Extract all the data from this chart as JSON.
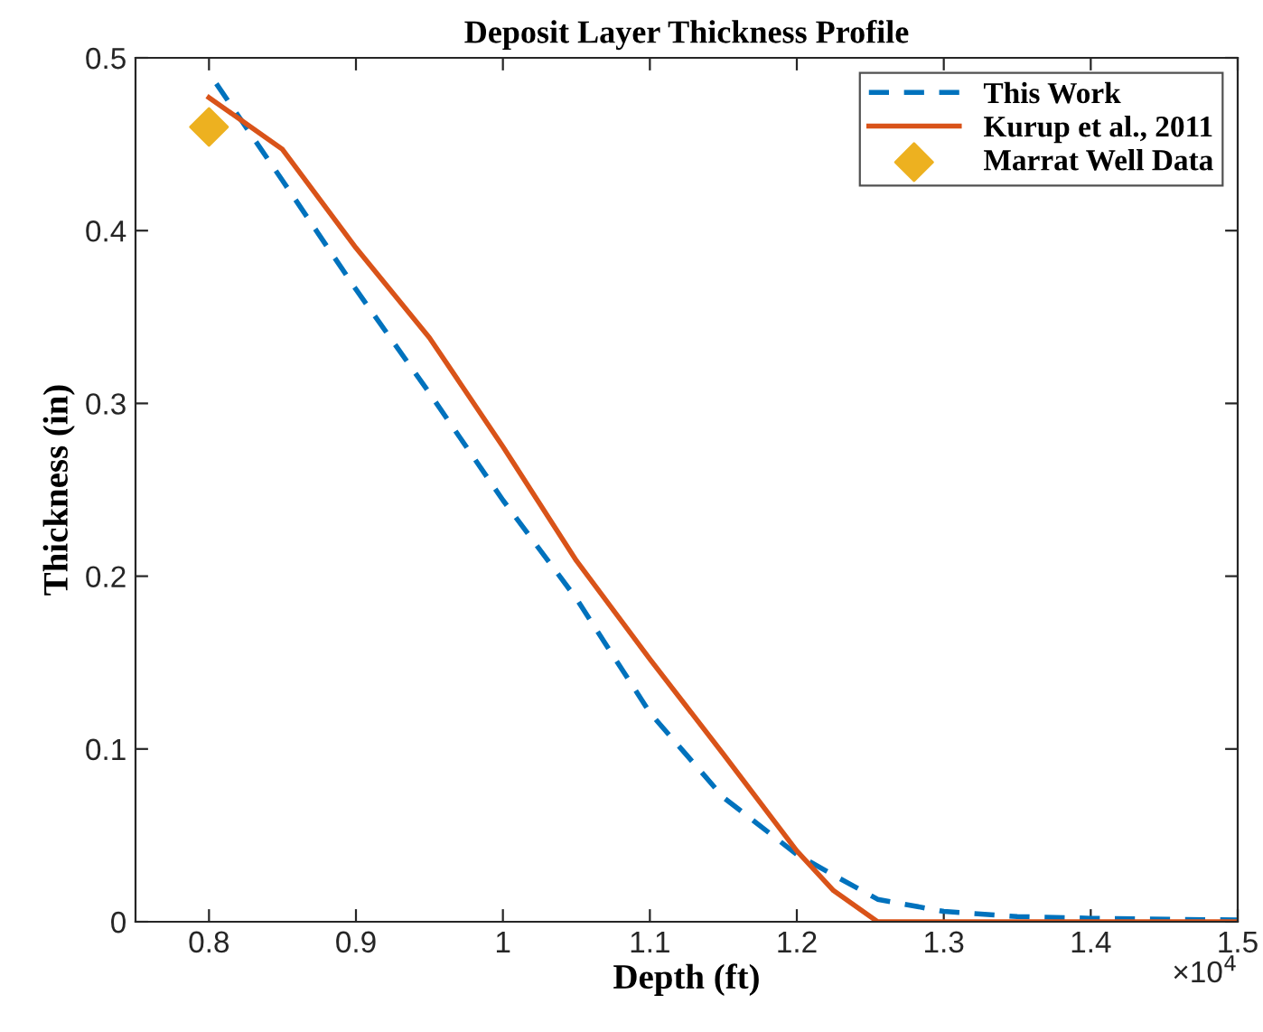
{
  "chart_data": {
    "type": "line",
    "title": "Deposit Layer Thickness Profile",
    "xlabel": "Depth (ft)",
    "ylabel": "Thickness (in)",
    "xlim": [
      0.75,
      1.5
    ],
    "xticks": [
      0.8,
      0.9,
      1,
      1.1,
      1.2,
      1.3,
      1.4,
      1.5
    ],
    "ylim": [
      0,
      0.5
    ],
    "yticks": [
      0,
      0.1,
      0.2,
      0.3,
      0.4,
      0.5
    ],
    "annotations": [
      "×10$^{4}$"
    ],
    "legend": "top right",
    "grid": false,
    "series": [
      {
        "name": "This Work",
        "color": "#0072bd",
        "line_style": "dashed",
        "marker": "none",
        "x": [
          0.805,
          0.85,
          0.9,
          0.95,
          1.0,
          1.05,
          1.1,
          1.15,
          1.2,
          1.225,
          1.255,
          1.3,
          1.35,
          1.4,
          1.5
        ],
        "values": [
          0.485,
          0.429,
          0.366,
          0.306,
          0.244,
          0.187,
          0.121,
          0.072,
          0.039,
          0.027,
          0.013,
          0.006,
          0.003,
          0.002,
          0.001
        ]
      },
      {
        "name": "Kurup et al., 2011",
        "color": "#d95319",
        "line_style": "solid",
        "marker": "none",
        "x": [
          0.8,
          0.85,
          0.9,
          0.95,
          1.0,
          1.05,
          1.1,
          1.15,
          1.2,
          1.225,
          1.255,
          1.3,
          1.4,
          1.5
        ],
        "values": [
          0.477,
          0.447,
          0.39,
          0.338,
          0.275,
          0.209,
          0.152,
          0.097,
          0.041,
          0.018,
          0,
          0,
          0,
          0
        ]
      },
      {
        "name": "Marrat Well Data",
        "type": "scatter",
        "color": "#edb120",
        "marker": "diamond",
        "x": [
          0.8
        ],
        "values": [
          0.46
        ]
      }
    ]
  }
}
